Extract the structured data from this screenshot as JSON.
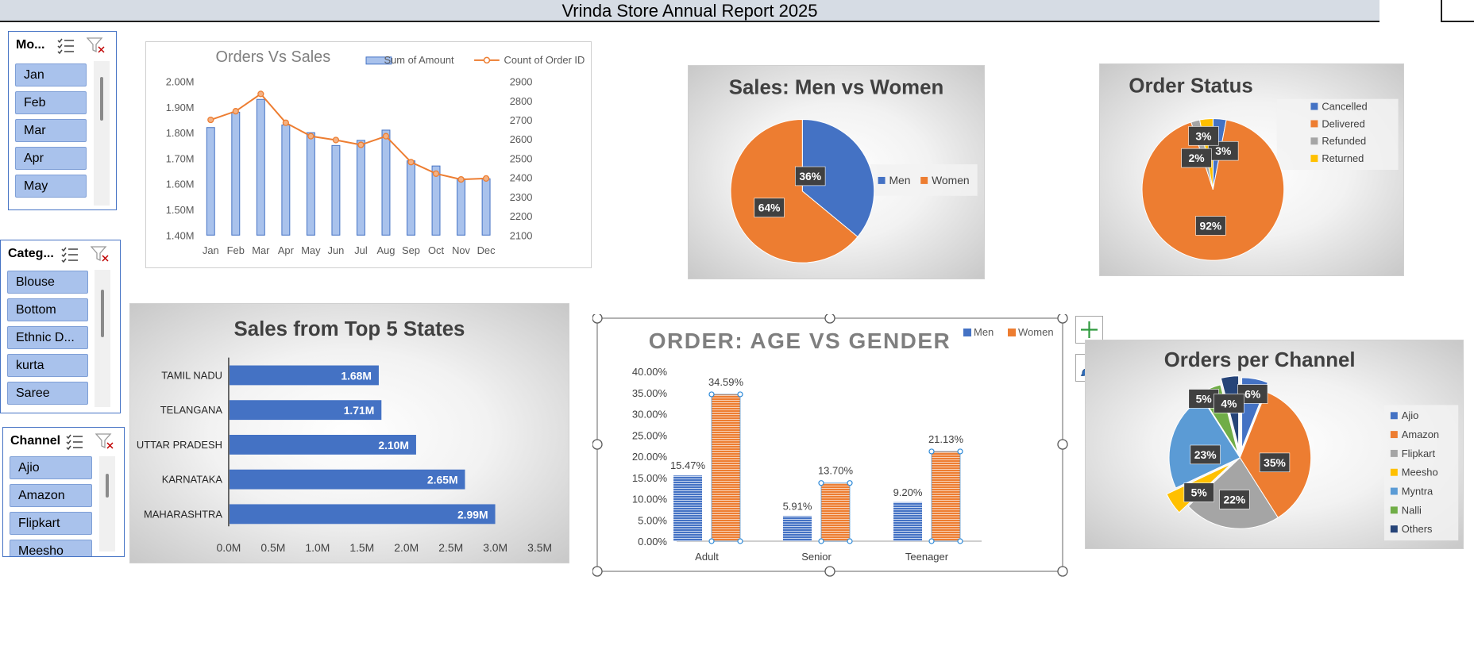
{
  "report_title": "Vrinda Store Annual Report 2025",
  "slicers": {
    "month": {
      "title": "Mo...",
      "items": [
        "Jan",
        "Feb",
        "Mar",
        "Apr",
        "May"
      ]
    },
    "category": {
      "title": "Categ...",
      "items": [
        "Blouse",
        "Bottom",
        "Ethnic D...",
        "kurta",
        "Saree"
      ]
    },
    "channel": {
      "title": "Channel",
      "items": [
        "Ajio",
        "Amazon",
        "Flipkart",
        "Meesho"
      ]
    }
  },
  "icons": {
    "multi_select": "multi-select-icon",
    "clear_filter": "clear-filter-icon",
    "add_element": "plus-icon",
    "chart_style": "paintbrush-icon"
  },
  "colors": {
    "blue": "#4472c4",
    "orange": "#ed7d31",
    "gray": "#a5a5a5",
    "yellow": "#ffc000",
    "light_blue": "#5b9bd5",
    "green": "#70ad47",
    "navy": "#264478"
  },
  "chart_data": [
    {
      "id": "orders_vs_sales",
      "type": "bar",
      "title": "Orders Vs Sales",
      "categories": [
        "Jan",
        "Feb",
        "Mar",
        "Apr",
        "May",
        "Jun",
        "Jul",
        "Aug",
        "Sep",
        "Oct",
        "Nov",
        "Dec"
      ],
      "series": [
        {
          "name": "Sum of Amount",
          "type": "bar",
          "axis": "left",
          "values": [
            1.82,
            1.88,
            1.93,
            1.83,
            1.8,
            1.75,
            1.77,
            1.81,
            1.69,
            1.67,
            1.62,
            1.62
          ]
        },
        {
          "name": "Count of Order ID",
          "type": "line",
          "axis": "right",
          "values": [
            2700,
            2745,
            2835,
            2685,
            2615,
            2595,
            2570,
            2615,
            2480,
            2420,
            2390,
            2395
          ]
        }
      ],
      "y_left": {
        "min": 1.4,
        "max": 2.0,
        "ticks": [
          "2.00M",
          "1.90M",
          "1.80M",
          "1.70M",
          "1.60M",
          "1.50M",
          "1.40M"
        ]
      },
      "y_right": {
        "min": 2100,
        "max": 2900,
        "ticks": [
          "2900",
          "2800",
          "2700",
          "2600",
          "2500",
          "2400",
          "2300",
          "2200",
          "2100"
        ]
      },
      "legend": "top-right"
    },
    {
      "id": "sales_men_women",
      "type": "pie",
      "title": "Sales: Men vs Women",
      "slices": [
        {
          "name": "Men",
          "value": 36,
          "label": "36%"
        },
        {
          "name": "Women",
          "value": 64,
          "label": "64%"
        }
      ],
      "legend": "right"
    },
    {
      "id": "order_status",
      "type": "pie",
      "title": "Order Status",
      "slices": [
        {
          "name": "Cancelled",
          "value": 3,
          "label": "3%"
        },
        {
          "name": "Delivered",
          "value": 92,
          "label": "92%"
        },
        {
          "name": "Refunded",
          "value": 2,
          "label": "2%"
        },
        {
          "name": "Returned",
          "value": 3,
          "label": "3%"
        }
      ],
      "legend": "top-right"
    },
    {
      "id": "top_states",
      "type": "bar",
      "orientation": "horizontal",
      "title": "Sales from Top 5 States",
      "categories": [
        "TAMIL NADU",
        "TELANGANA",
        "UTTAR PRADESH",
        "KARNATAKA",
        "MAHARASHTRA"
      ],
      "values": [
        1.68,
        1.71,
        2.1,
        2.65,
        2.99
      ],
      "labels": [
        "1.68M",
        "1.71M",
        "2.10M",
        "2.65M",
        "2.99M"
      ],
      "x_axis": {
        "min": 0,
        "max": 3.5,
        "ticks": [
          "0.0M",
          "0.5M",
          "1.0M",
          "1.5M",
          "2.0M",
          "2.5M",
          "3.0M",
          "3.5M"
        ]
      }
    },
    {
      "id": "age_vs_gender",
      "type": "bar",
      "title": "ORDER: AGE VS GENDER",
      "categories": [
        "Adult",
        "Senior",
        "Teenager"
      ],
      "series": [
        {
          "name": "Men",
          "values": [
            15.47,
            5.91,
            9.2
          ],
          "labels": [
            "15.47%",
            "5.91%",
            "9.20%"
          ]
        },
        {
          "name": "Women",
          "values": [
            34.59,
            13.7,
            21.13
          ],
          "labels": [
            "34.59%",
            "13.70%",
            "21.13%"
          ]
        }
      ],
      "y_axis": {
        "min": 0,
        "max": 40,
        "ticks": [
          "40.00%",
          "35.00%",
          "30.00%",
          "25.00%",
          "20.00%",
          "15.00%",
          "10.00%",
          "5.00%",
          "0.00%"
        ]
      },
      "legend": "top-right",
      "selected": true
    },
    {
      "id": "orders_per_channel",
      "type": "pie",
      "title": "Orders per Channel",
      "slices": [
        {
          "name": "Ajio",
          "value": 6,
          "label": "6%"
        },
        {
          "name": "Amazon",
          "value": 35,
          "label": "35%"
        },
        {
          "name": "Flipkart",
          "value": 22,
          "label": "22%"
        },
        {
          "name": "Meesho",
          "value": 5,
          "label": "5%"
        },
        {
          "name": "Myntra",
          "value": 23,
          "label": "23%"
        },
        {
          "name": "Nalli",
          "value": 5,
          "label": "5%"
        },
        {
          "name": "Others",
          "value": 4,
          "label": "4%"
        }
      ],
      "legend": "right"
    }
  ]
}
